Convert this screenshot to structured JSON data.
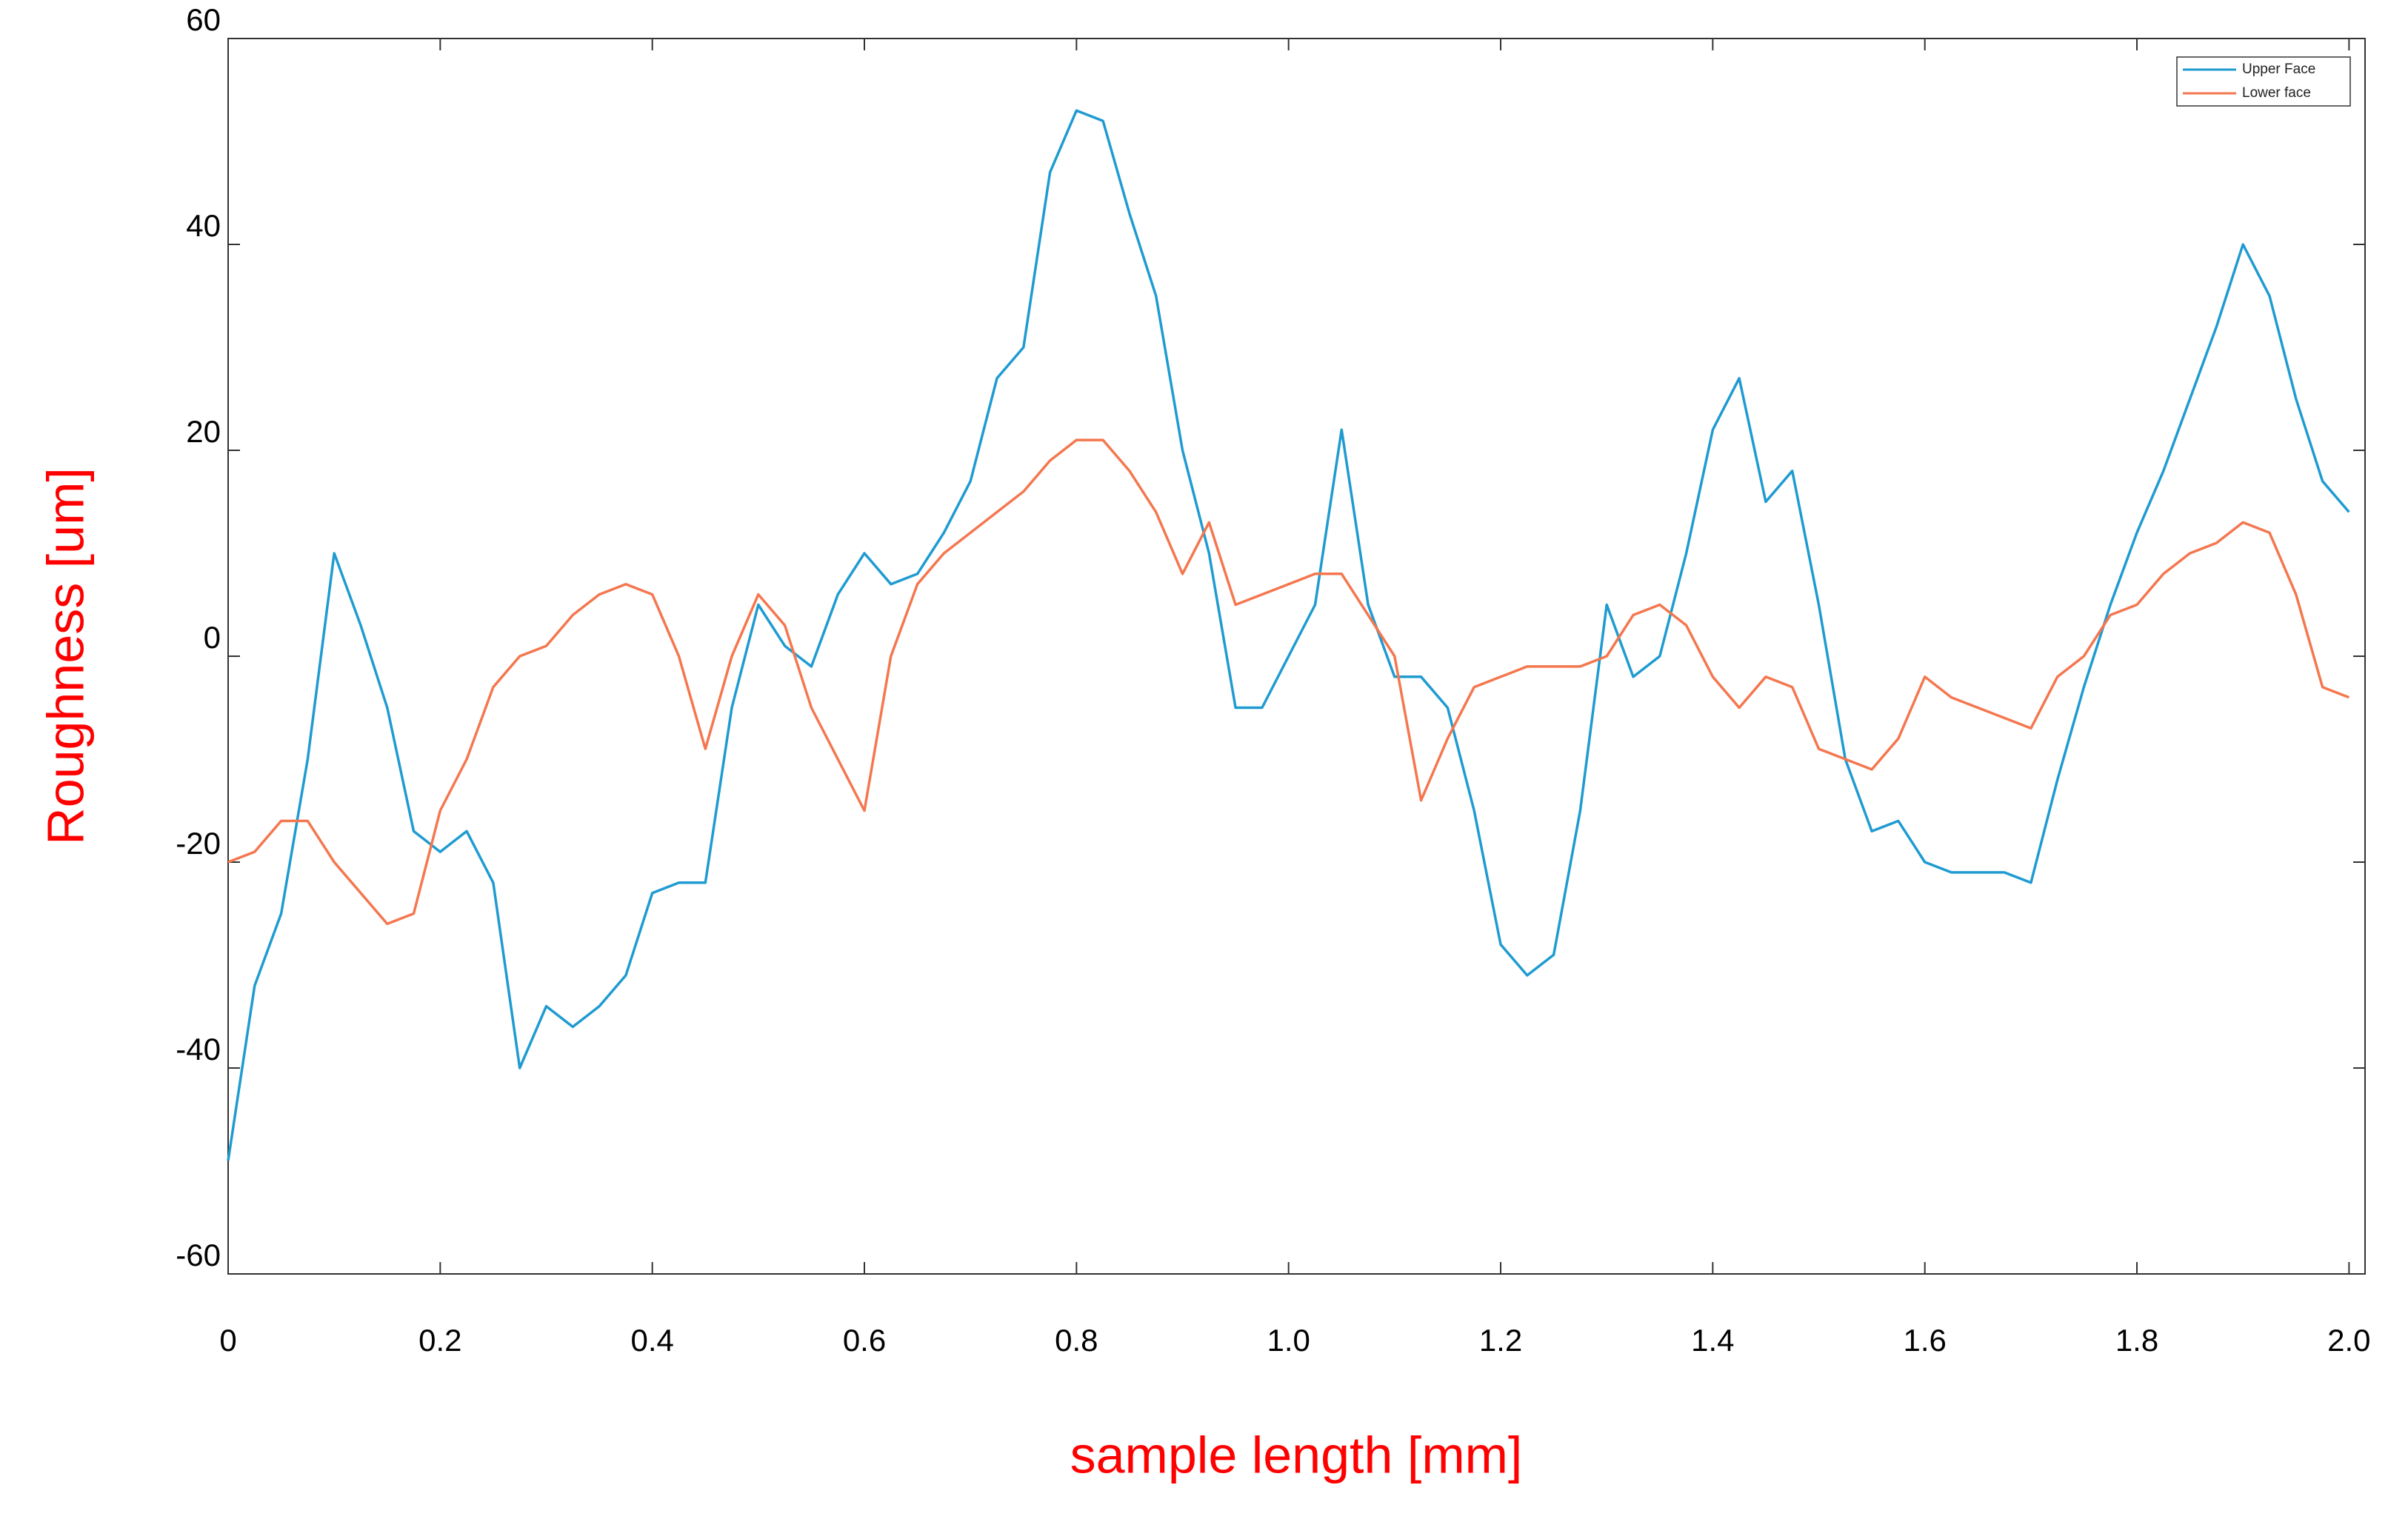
{
  "chart_data": {
    "type": "line",
    "x_label": "sample length [mm]",
    "y_label": "Roughness [um]",
    "x": [
      0,
      0.025,
      0.05,
      0.075,
      0.1,
      0.125,
      0.15,
      0.175,
      0.2,
      0.225,
      0.25,
      0.275,
      0.3,
      0.325,
      0.35,
      0.375,
      0.4,
      0.425,
      0.45,
      0.475,
      0.5,
      0.525,
      0.55,
      0.575,
      0.6,
      0.625,
      0.65,
      0.675,
      0.7,
      0.725,
      0.75,
      0.775,
      0.8,
      0.825,
      0.85,
      0.875,
      0.9,
      0.925,
      0.95,
      0.975,
      1.0,
      1.025,
      1.05,
      1.075,
      1.1,
      1.125,
      1.15,
      1.175,
      1.2,
      1.225,
      1.25,
      1.275,
      1.3,
      1.325,
      1.35,
      1.375,
      1.4,
      1.425,
      1.45,
      1.475,
      1.5,
      1.525,
      1.55,
      1.575,
      1.6,
      1.625,
      1.65,
      1.675,
      1.7,
      1.725,
      1.75,
      1.775,
      1.8,
      1.825,
      1.85,
      1.875,
      1.9,
      1.925,
      1.95,
      1.975,
      2.0
    ],
    "series": [
      {
        "name": "Upper Face",
        "color": "#1f9bd1",
        "values": [
          -49,
          -32,
          -25,
          -10,
          10,
          3,
          -5,
          -17,
          -19,
          -17,
          -22,
          -40,
          -34,
          -36,
          -34,
          -31,
          -23,
          -22,
          -22,
          -5,
          5,
          1,
          -1,
          6,
          10,
          7,
          8,
          12,
          17,
          27,
          30,
          47,
          53,
          52,
          43,
          35,
          20,
          10,
          -5,
          -5,
          0,
          5,
          22,
          5,
          -2,
          -2,
          -5,
          -15,
          -28,
          -31,
          -29,
          -15,
          5,
          -2,
          0,
          10,
          22,
          27,
          15,
          18,
          5,
          -10,
          -17,
          -16,
          -20,
          -21,
          -21,
          -21,
          -22,
          -12,
          -3,
          5,
          12,
          18,
          25,
          32,
          40,
          35,
          25,
          17,
          14
        ]
      },
      {
        "name": "Lower face",
        "color": "#f4774f",
        "values": [
          -20,
          -19,
          -16,
          -16,
          -20,
          -23,
          -26,
          -25,
          -15,
          -10,
          -3,
          0,
          1,
          4,
          6,
          7,
          6,
          0,
          -9,
          0,
          6,
          3,
          -5,
          -10,
          -15,
          0,
          7,
          10,
          12,
          14,
          16,
          19,
          21,
          21,
          18,
          14,
          8,
          13,
          5,
          6,
          7,
          8,
          8,
          4,
          0,
          -14,
          -8,
          -3,
          -2,
          -1,
          -1,
          -1,
          0,
          4,
          5,
          3,
          -2,
          -5,
          -2,
          -3,
          -9,
          -10,
          -11,
          -8,
          -2,
          -4,
          -5,
          -6,
          -7,
          -2,
          0,
          4,
          5,
          8,
          10,
          11,
          13,
          12,
          6,
          -3,
          -4
        ]
      }
    ],
    "xlim": [
      0,
      2.0
    ],
    "ylim": [
      -60,
      60
    ],
    "xticks": [
      0,
      0.2,
      0.4,
      0.6,
      0.8,
      {
        "value": 1,
        "label": "1.0"
      },
      1.2,
      1.4,
      1.6,
      1.8,
      {
        "value": 2,
        "label": "2.0"
      }
    ],
    "yticks": [
      -60,
      -40,
      -20,
      0,
      20,
      40,
      60
    ],
    "grid": false,
    "legend": "upper-right"
  }
}
